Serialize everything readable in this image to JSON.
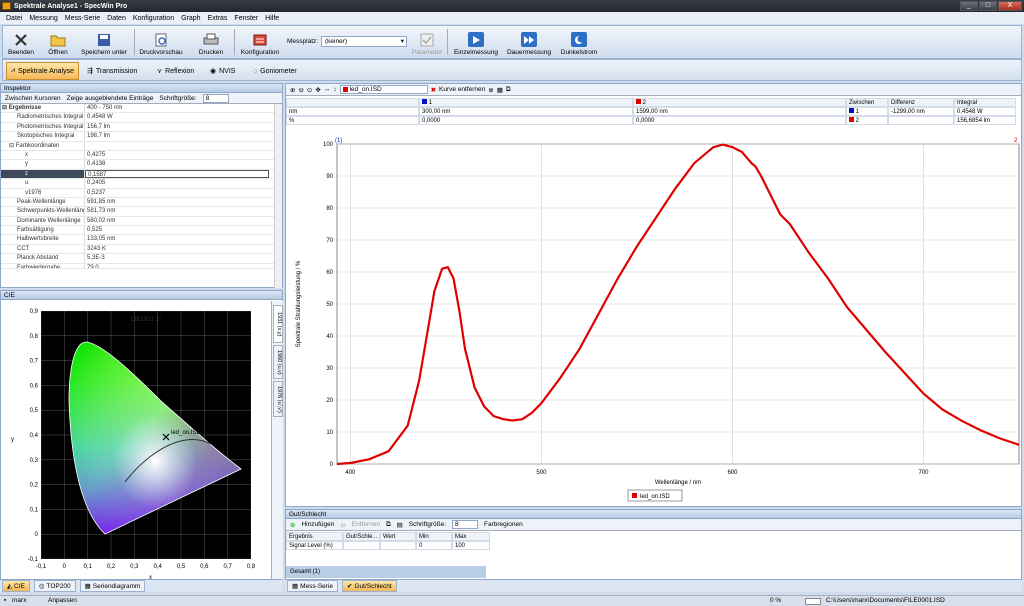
{
  "window": {
    "title": "Spektrale Analyse1 - SpecWin Pro",
    "min": "_",
    "max": "□",
    "close": "X"
  },
  "menu": [
    "Datei",
    "Messung",
    "Mess-Serie",
    "Daten",
    "Konfiguration",
    "Graph",
    "Extras",
    "Fenster",
    "Hilfe"
  ],
  "toolbar": {
    "beenden": "Beenden",
    "oeffnen": "Öffnen",
    "speichern": "Speichern unter",
    "druckvorschau": "Druckvorschau",
    "drucken": "Drucken",
    "konfiguration": "Konfiguration",
    "messplatz_label": "Messplatz:",
    "messplatz_value": "(keiner)",
    "parameter": "Parameter",
    "einzelmessung": "Einzelmessung",
    "dauermessung": "Dauermessung",
    "dunkelstrom": "Dunkelstrom"
  },
  "modes": [
    "Spektrale Analyse",
    "Transmission",
    "Reflexion",
    "NVIS",
    "Goniometer"
  ],
  "inspector": {
    "title": "Inspektor",
    "tools": {
      "zwischen": "Zwischen Kursoren",
      "zeige": "Zeige ausgeblendete Einträge",
      "schriftgroesse": "Schriftgröße:",
      "size": "8"
    },
    "rows": [
      {
        "k": "⊟ Ergebnisse",
        "v": "400 - 750 nm"
      },
      {
        "k": "Radiometrisches Integral",
        "v": "0,4548 W"
      },
      {
        "k": "Photometrisches Integral",
        "v": "156,7 lm"
      },
      {
        "k": "Skotopisches Integral",
        "v": "198,7 lm"
      },
      {
        "k": "⊟ Farbkoordinaten",
        "v": ""
      },
      {
        "k": "x",
        "v": "0,4275"
      },
      {
        "k": "y",
        "v": "0,4138"
      },
      {
        "k": "z",
        "v": "0,1587"
      },
      {
        "k": "u",
        "v": "0,2405"
      },
      {
        "k": "v1976",
        "v": "0,5237"
      },
      {
        "k": "Peak-Wellenlänge",
        "v": "591,85 nm"
      },
      {
        "k": "Schwerpunkts-Wellenlänge",
        "v": "581,73 nm"
      },
      {
        "k": "Dominante Wellenlänge",
        "v": "580,02 nm"
      },
      {
        "k": "Farbsättigung",
        "v": "0,525"
      },
      {
        "k": "Halbwertsbreite",
        "v": "133,05 nm"
      },
      {
        "k": "CCT",
        "v": "3243 K"
      },
      {
        "k": "Planck Abstand",
        "v": "5,3E-3"
      },
      {
        "k": "Farbwiedergabe",
        "v": "79,0"
      }
    ]
  },
  "cie": {
    "title": "CIE",
    "chart_title": "CIE1931 2°",
    "side_tabs": [
      "1931 (x,y)",
      "1960 (u,v)",
      "1976 (u',v')"
    ],
    "point_label": "led_on.ISD",
    "xlabel": "x",
    "ylabel": "y",
    "xticks": [
      "-0,1",
      "0",
      "0,1",
      "0,2",
      "0,3",
      "0,4",
      "0,5",
      "0,6",
      "0,7",
      "0,8"
    ],
    "yticks": [
      "0,9",
      "0,8",
      "0,7",
      "0,6",
      "0,5",
      "0,4",
      "0,3",
      "0,2",
      "0,1",
      "0",
      "-0,1"
    ]
  },
  "left_tabs": [
    "CIE",
    "TOP200",
    "Seriendiagramm"
  ],
  "chart_toolbar": {
    "file": "led_on.ISD",
    "remove": "Kurve entfernen"
  },
  "cursor_table": {
    "h1": "1",
    "h2": "2",
    "h3": "Zwischen",
    "h4": "Differenz",
    "h5": "Integral",
    "r1": [
      "nm",
      "300,00 nm",
      "1599,00 nm"
    ],
    "r2": [
      "%",
      "0,0000",
      "0,0000"
    ],
    "z1": [
      "1",
      "-1299,00 nm",
      "0,4548 W"
    ],
    "z2": [
      "2",
      "",
      "156,6854 lm"
    ]
  },
  "chart_data": {
    "type": "line",
    "xlabel": "Wellenlänge / nm",
    "ylabel": "Spektrale Strahlungsleistung / %",
    "xlim": [
      393,
      750
    ],
    "ylim": [
      0,
      100
    ],
    "xticks": [
      400,
      500,
      600,
      700
    ],
    "yticks": [
      0,
      10,
      20,
      30,
      40,
      50,
      60,
      70,
      80,
      90,
      100
    ],
    "cursor_labels": [
      "(1)",
      "2"
    ],
    "legend": "led_on.ISD",
    "series": [
      {
        "name": "led_on.ISD",
        "color": "#e00000",
        "x": [
          393,
          400,
          410,
          420,
          430,
          436,
          440,
          444,
          448,
          451,
          454,
          457,
          460,
          465,
          470,
          475,
          480,
          485,
          490,
          495,
          500,
          510,
          520,
          530,
          540,
          550,
          560,
          570,
          580,
          590,
          595,
          600,
          605,
          610,
          612,
          615,
          620,
          625,
          630,
          640,
          650,
          660,
          670,
          680,
          690,
          700,
          710,
          720,
          730,
          740,
          750
        ],
        "y": [
          0,
          0.3,
          1.5,
          4,
          12,
          26,
          40,
          54,
          61,
          61.5,
          58,
          48,
          36,
          24,
          18,
          15,
          14,
          13.6,
          14,
          16,
          19,
          27,
          36,
          47,
          58,
          68,
          77,
          86,
          94,
          99,
          99.8,
          99,
          97.5,
          94,
          93,
          90,
          84,
          78,
          75,
          66,
          58,
          49,
          42,
          35,
          28.5,
          22,
          17,
          13.5,
          10.5,
          8,
          6
        ]
      }
    ]
  },
  "gut": {
    "title": "Gut/Schlecht",
    "add": "Hinzufügen",
    "remove": "Entfernen",
    "schrift": "Schriftgröße:",
    "size": "8",
    "farb": "Farbregionen",
    "headers": [
      "Ergebnis",
      "Gut/Schle...",
      "Wert",
      "Min",
      "Max"
    ],
    "row": [
      "Signal Level (%)",
      "",
      "",
      "0",
      "100"
    ],
    "gesamt": "Gesamt (1)"
  },
  "right_tabs": [
    "Mess-Serie",
    "Gut/Schlecht"
  ],
  "status": {
    "user": "marx",
    "anpassen": "Anpassen",
    "percent": "0 %",
    "path": "C:\\Users\\marx\\Documents\\FILE0001.ISD"
  },
  "colors": {
    "accent": "#f6b85a",
    "curve": "#e00000",
    "chrome": "#cfdcec"
  }
}
